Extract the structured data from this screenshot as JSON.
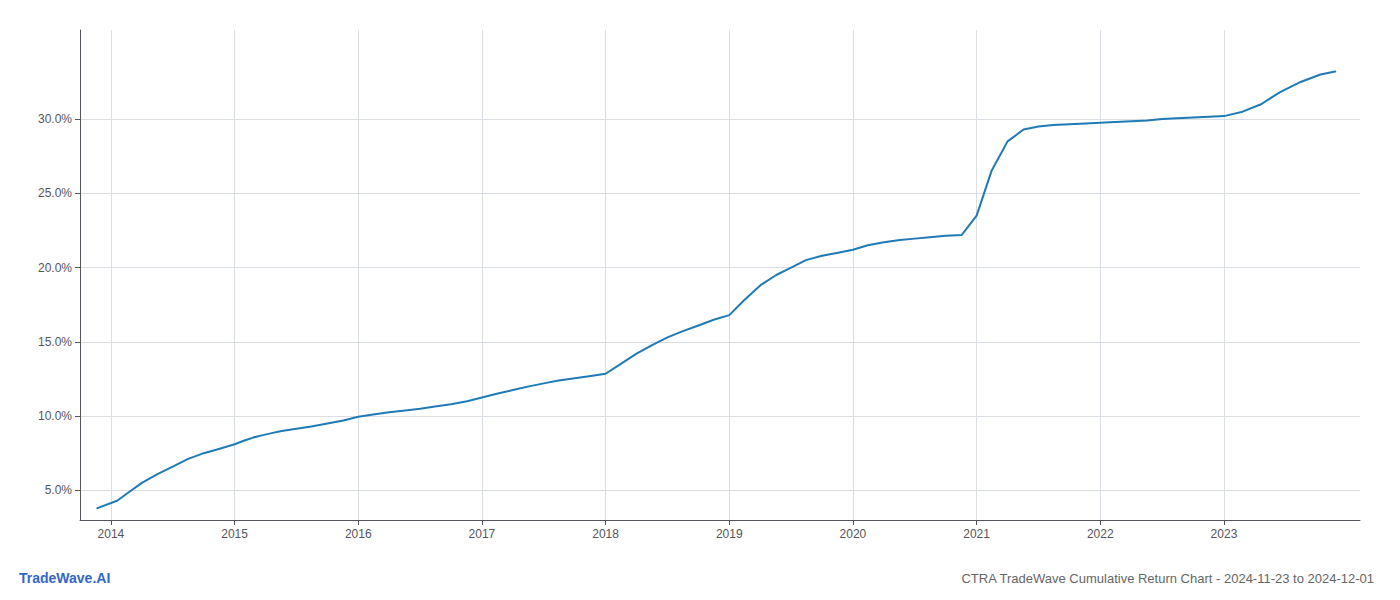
{
  "chart_data": {
    "type": "line",
    "title": "CTRA TradeWave Cumulative Return Chart - 2024-11-23 to 2024-12-01",
    "annotations": [
      "TradeWave.AI"
    ],
    "color": "#1f7ab5",
    "x": [
      2013.89,
      2014.05,
      2014.15,
      2014.25,
      2014.38,
      2014.5,
      2014.62,
      2014.75,
      2014.88,
      2015.0,
      2015.08,
      2015.15,
      2015.22,
      2015.3,
      2015.38,
      2015.5,
      2015.62,
      2015.75,
      2015.88,
      2016.0,
      2016.12,
      2016.25,
      2016.38,
      2016.5,
      2016.62,
      2016.75,
      2016.88,
      2017.0,
      2017.12,
      2017.25,
      2017.38,
      2017.5,
      2017.62,
      2017.75,
      2017.88,
      2018.0,
      2018.12,
      2018.25,
      2018.38,
      2018.5,
      2018.62,
      2018.75,
      2018.88,
      2019.0,
      2019.12,
      2019.25,
      2019.38,
      2019.5,
      2019.62,
      2019.75,
      2019.88,
      2020.0,
      2020.12,
      2020.25,
      2020.38,
      2020.5,
      2020.62,
      2020.75,
      2020.88,
      2021.0,
      2021.12,
      2021.25,
      2021.38,
      2021.5,
      2021.62,
      2021.75,
      2021.88,
      2022.0,
      2022.12,
      2022.25,
      2022.38,
      2022.5,
      2022.62,
      2022.75,
      2022.88,
      2023.0,
      2023.15,
      2023.3,
      2023.45,
      2023.62,
      2023.78,
      2023.9
    ],
    "values": [
      3.8,
      4.3,
      4.9,
      5.5,
      6.1,
      6.6,
      7.1,
      7.5,
      7.8,
      8.1,
      8.35,
      8.55,
      8.7,
      8.85,
      9.0,
      9.15,
      9.3,
      9.5,
      9.7,
      9.95,
      10.1,
      10.25,
      10.38,
      10.5,
      10.65,
      10.8,
      11.0,
      11.25,
      11.5,
      11.75,
      12.0,
      12.2,
      12.4,
      12.55,
      12.7,
      12.85,
      13.5,
      14.2,
      14.8,
      15.3,
      15.7,
      16.1,
      16.5,
      16.8,
      17.8,
      18.8,
      19.5,
      20.0,
      20.5,
      20.8,
      21.0,
      21.2,
      21.5,
      21.7,
      21.85,
      21.95,
      22.05,
      22.15,
      22.2,
      23.5,
      26.5,
      28.5,
      29.3,
      29.5,
      29.6,
      29.65,
      29.7,
      29.75,
      29.8,
      29.85,
      29.9,
      30.0,
      30.05,
      30.1,
      30.15,
      30.2,
      30.5,
      31.0,
      31.8,
      32.5,
      33.0,
      33.2
    ],
    "xlim": [
      2013.75,
      2024.1
    ],
    "xticks": [
      2014,
      2015,
      2016,
      2017,
      2018,
      2019,
      2020,
      2021,
      2022,
      2023
    ],
    "ylim": [
      3.0,
      36.0
    ],
    "yticks": [
      {
        "value": 5.0,
        "label": "5.0%"
      },
      {
        "value": 10.0,
        "label": "10.0%"
      },
      {
        "value": 15.0,
        "label": "15.0%"
      },
      {
        "value": 20.0,
        "label": "20.0%"
      },
      {
        "value": 25.0,
        "label": "25.0%"
      },
      {
        "value": 30.0,
        "label": "30.0%"
      }
    ],
    "grid": true
  }
}
